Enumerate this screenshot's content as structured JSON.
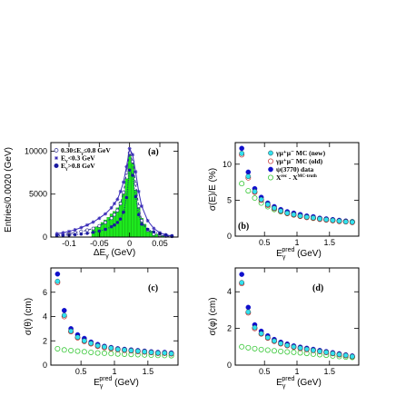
{
  "chart_data": [
    {
      "panel": "a",
      "type": "line",
      "tag": "(a)",
      "xlabel": "ΔE",
      "xlabel_sub": "γ",
      "xlabel_unit": " (GeV)",
      "ylabel": "Entries/0.0020 (GeV)",
      "xlim": [
        -0.13,
        0.08
      ],
      "ylim": [
        0,
        11000
      ],
      "xticks": [
        -0.1,
        -0.05,
        0,
        0.05
      ],
      "xtick_labels": [
        "-0.1",
        "-0.05",
        "0",
        "0.05"
      ],
      "yticks": [
        0,
        5000,
        10000
      ],
      "ytick_labels": [
        "0",
        "5000",
        "10000"
      ],
      "legend": [
        "0.30≤E",
        "E",
        "E"
      ],
      "legend_full": [
        {
          "text": "0.30≤E",
          "sub": "γ",
          "rest": "≤0.8 GeV",
          "marker": "open-circle"
        },
        {
          "text": "E",
          "sub": "γ",
          "rest": "<0.3 GeV",
          "marker": "star"
        },
        {
          "text": "E",
          "sub": "γ",
          "rest": ">0.8 GeV",
          "marker": "filled-circle"
        }
      ],
      "series": [
        {
          "name": "0.30≤Eγ≤0.8 GeV",
          "x": [
            -0.12,
            -0.11,
            -0.1,
            -0.09,
            -0.08,
            -0.07,
            -0.06,
            -0.05,
            -0.04,
            -0.03,
            -0.025,
            -0.02,
            -0.015,
            -0.01,
            -0.005,
            0,
            0.005,
            0.01,
            0.015,
            0.02,
            0.03,
            0.04,
            0.05,
            0.06,
            0.07
          ],
          "y": [
            250,
            300,
            400,
            500,
            650,
            800,
            1000,
            1300,
            1700,
            2200,
            2600,
            3100,
            3900,
            5200,
            7500,
            9800,
            8800,
            6200,
            3600,
            1900,
            800,
            350,
            200,
            120,
            80
          ]
        },
        {
          "name": "Eγ<0.3 GeV",
          "x": [
            -0.12,
            -0.11,
            -0.1,
            -0.09,
            -0.08,
            -0.07,
            -0.06,
            -0.05,
            -0.04,
            -0.03,
            -0.025,
            -0.02,
            -0.015,
            -0.01,
            -0.005,
            0,
            0.005,
            0.01,
            0.015,
            0.02,
            0.03,
            0.04,
            0.05,
            0.06,
            0.07
          ],
          "y": [
            400,
            500,
            650,
            850,
            1100,
            1400,
            1750,
            2200,
            2700,
            3400,
            3900,
            4400,
            5300,
            6400,
            8200,
            10300,
            9600,
            7600,
            5300,
            3600,
            1900,
            1000,
            500,
            250,
            120
          ]
        },
        {
          "name": "Eγ>0.8 GeV",
          "x": [
            -0.12,
            -0.11,
            -0.1,
            -0.09,
            -0.08,
            -0.07,
            -0.06,
            -0.05,
            -0.04,
            -0.03,
            -0.025,
            -0.02,
            -0.015,
            -0.01,
            -0.005,
            0,
            0.005,
            0.01,
            0.015,
            0.02,
            0.03,
            0.04,
            0.05,
            0.06,
            0.07
          ],
          "y": [
            150,
            180,
            220,
            280,
            350,
            430,
            550,
            700,
            900,
            1200,
            1400,
            1700,
            2100,
            2900,
            4600,
            7800,
            7200,
            4700,
            2600,
            1500,
            900,
            600,
            400,
            250,
            150
          ]
        }
      ],
      "histogram": {
        "name": "MC",
        "x": [
          -0.06,
          -0.055,
          -0.05,
          -0.045,
          -0.04,
          -0.035,
          -0.03,
          -0.025,
          -0.02,
          -0.015,
          -0.01,
          -0.005,
          0,
          0.005,
          0.01,
          0.015,
          0.02,
          0.025,
          0.03,
          0.035,
          0.04,
          0.045,
          0.05,
          0.055
        ],
        "y": [
          1000,
          1200,
          1400,
          1700,
          2000,
          2300,
          2700,
          3000,
          3400,
          4100,
          5000,
          6800,
          9600,
          8600,
          5500,
          3400,
          2200,
          1500,
          1000,
          700,
          500,
          350,
          250,
          180
        ]
      },
      "colors": {
        "star": "#3a2cb8",
        "open": "#2d2d8e",
        "filled": "#1a1aa0",
        "histogram": "#1ee81e"
      }
    },
    {
      "panel": "b",
      "type": "scatter",
      "tag": "(b)",
      "ylabel": "σ(E)/E (%)",
      "xlabel": "E",
      "xlabel_sup": "pred",
      "xlabel_sub": "γ",
      "xlabel_unit": " (GeV)",
      "xlim": [
        0.05,
        1.95
      ],
      "ylim": [
        0,
        13
      ],
      "xticks": [
        0.5,
        1,
        1.5
      ],
      "xtick_labels": [
        "0.5",
        "1",
        "1.5"
      ],
      "yticks": [
        0,
        5,
        10
      ],
      "ytick_labels": [
        "0",
        "5",
        "10"
      ],
      "legend_full": [
        {
          "text": "γμ⁺μ⁻ MC (new)",
          "marker": "cyan-circle"
        },
        {
          "text": "γμ⁺μ⁻ MC (old)",
          "marker": "open-red-circle"
        },
        {
          "text": "ψ(3770) data",
          "marker": "blue-circle"
        },
        {
          "text": "X",
          "sup": "rec",
          "rest": " - X",
          "sup2": "MC-truth",
          "marker": "open-green-circle"
        }
      ],
      "x": [
        0.15,
        0.25,
        0.35,
        0.45,
        0.55,
        0.65,
        0.75,
        0.85,
        0.95,
        1.05,
        1.15,
        1.25,
        1.35,
        1.45,
        1.55,
        1.65,
        1.75,
        1.85
      ],
      "series": [
        {
          "name": "ψ(3770) data",
          "values": [
            12.2,
            8.9,
            6.6,
            5.4,
            4.6,
            4.1,
            3.7,
            3.4,
            3.2,
            3.0,
            2.8,
            2.7,
            2.5,
            2.4,
            2.3,
            2.2,
            2.1,
            2.0
          ]
        },
        {
          "name": "γμ⁺μ⁻ MC (new)",
          "values": [
            11.5,
            8.3,
            6.2,
            5.1,
            4.4,
            3.9,
            3.5,
            3.2,
            3.0,
            2.8,
            2.65,
            2.55,
            2.4,
            2.3,
            2.2,
            2.1,
            2.0,
            1.95
          ]
        },
        {
          "name": "γμ⁺μ⁻ MC (old)",
          "values": [
            11.3,
            8.1,
            6.1,
            5.0,
            4.3,
            3.85,
            3.45,
            3.15,
            2.95,
            2.75,
            2.6,
            2.5,
            2.35,
            2.25,
            2.15,
            2.05,
            2.0,
            1.9
          ]
        },
        {
          "name": "Xrec - XMC-truth",
          "values": [
            7.3,
            6.3,
            5.3,
            4.6,
            4.1,
            3.7,
            3.4,
            3.15,
            2.95,
            2.8,
            2.65,
            2.5,
            2.4,
            2.3,
            2.2,
            2.1,
            2.05,
            2.0
          ]
        }
      ]
    },
    {
      "panel": "c",
      "type": "scatter",
      "tag": "(c)",
      "ylabel": "σ(θ) (cm)",
      "xlabel": "E",
      "xlabel_sup": "pred",
      "xlabel_sub": "γ",
      "xlabel_unit": " (GeV)",
      "xlim": [
        0.05,
        1.95
      ],
      "ylim": [
        0,
        8
      ],
      "xticks": [
        0.5,
        1,
        1.5
      ],
      "xtick_labels": [
        "0.5",
        "1",
        "1.5"
      ],
      "yticks": [
        0,
        2,
        4,
        6
      ],
      "ytick_labels": [
        "0",
        "2",
        "4",
        "6"
      ],
      "x": [
        0.15,
        0.25,
        0.35,
        0.45,
        0.55,
        0.65,
        0.75,
        0.85,
        0.95,
        1.05,
        1.15,
        1.25,
        1.35,
        1.45,
        1.55,
        1.65,
        1.75,
        1.85
      ],
      "series": [
        {
          "name": "ψ(3770) data",
          "values": [
            7.5,
            4.5,
            3.0,
            2.5,
            2.2,
            1.9,
            1.7,
            1.55,
            1.45,
            1.35,
            1.3,
            1.25,
            1.2,
            1.15,
            1.1,
            1.05,
            1.05,
            1.0
          ]
        },
        {
          "name": "γμ⁺μ⁻ MC (new)",
          "values": [
            6.9,
            4.1,
            2.8,
            2.3,
            2.0,
            1.8,
            1.6,
            1.5,
            1.4,
            1.3,
            1.25,
            1.2,
            1.15,
            1.1,
            1.05,
            1.0,
            1.0,
            0.95
          ]
        },
        {
          "name": "γμ⁺μ⁻ MC (old)",
          "values": [
            6.8,
            4.0,
            2.75,
            2.25,
            1.95,
            1.75,
            1.55,
            1.45,
            1.35,
            1.28,
            1.22,
            1.18,
            1.12,
            1.08,
            1.03,
            0.98,
            0.98,
            0.93
          ]
        },
        {
          "name": "Xrec - XMC-truth",
          "values": [
            1.35,
            1.25,
            1.2,
            1.15,
            1.1,
            1.05,
            1.0,
            0.98,
            0.95,
            0.92,
            0.9,
            0.88,
            0.86,
            0.84,
            0.82,
            0.8,
            0.79,
            0.78
          ]
        }
      ]
    },
    {
      "panel": "d",
      "type": "scatter",
      "tag": "(d)",
      "ylabel": "σ(φ) (cm)",
      "xlabel": "E",
      "xlabel_sup": "pred",
      "xlabel_sub": "γ",
      "xlabel_unit": " (GeV)",
      "xlim": [
        0.05,
        1.95
      ],
      "ylim": [
        0,
        5.3
      ],
      "xticks": [
        0.5,
        1,
        1.5
      ],
      "xtick_labels": [
        "0.5",
        "1",
        "1.5"
      ],
      "yticks": [
        0,
        2,
        4
      ],
      "ytick_labels": [
        "0",
        "2",
        "4"
      ],
      "x": [
        0.15,
        0.25,
        0.35,
        0.45,
        0.55,
        0.65,
        0.75,
        0.85,
        0.95,
        1.05,
        1.15,
        1.25,
        1.35,
        1.45,
        1.55,
        1.65,
        1.75,
        1.85
      ],
      "series": [
        {
          "name": "ψ(3770) data",
          "values": [
            4.95,
            3.15,
            2.2,
            1.85,
            1.6,
            1.4,
            1.25,
            1.15,
            1.05,
            0.98,
            0.92,
            0.86,
            0.8,
            0.74,
            0.68,
            0.62,
            0.56,
            0.5
          ]
        },
        {
          "name": "γμ⁺μ⁻ MC (new)",
          "values": [
            4.5,
            2.9,
            2.05,
            1.72,
            1.5,
            1.32,
            1.18,
            1.08,
            1.0,
            0.93,
            0.87,
            0.81,
            0.75,
            0.7,
            0.64,
            0.58,
            0.53,
            0.47
          ]
        },
        {
          "name": "γμ⁺μ⁻ MC (old)",
          "values": [
            4.45,
            2.85,
            2.0,
            1.7,
            1.48,
            1.3,
            1.16,
            1.06,
            0.98,
            0.91,
            0.85,
            0.8,
            0.74,
            0.69,
            0.63,
            0.57,
            0.52,
            0.46
          ]
        },
        {
          "name": "Xrec - XMC-truth",
          "values": [
            1.0,
            0.95,
            0.9,
            0.85,
            0.82,
            0.78,
            0.75,
            0.72,
            0.7,
            0.67,
            0.64,
            0.6,
            0.57,
            0.54,
            0.5,
            0.47,
            0.44,
            0.42
          ]
        }
      ]
    }
  ],
  "style_colors": {
    "mc_new": "#33e0ee",
    "mc_old_stroke": "#c03030",
    "data": "#1010cc",
    "truth_stroke": "#38c838"
  }
}
